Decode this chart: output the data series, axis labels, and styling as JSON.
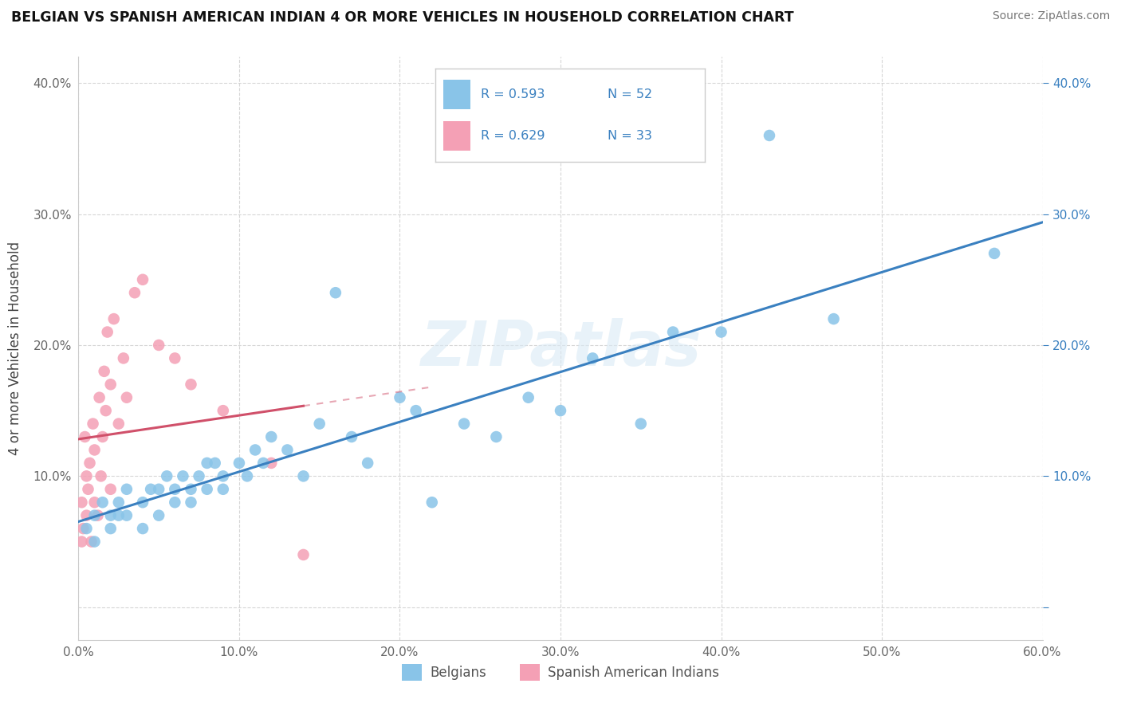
{
  "title": "BELGIAN VS SPANISH AMERICAN INDIAN 4 OR MORE VEHICLES IN HOUSEHOLD CORRELATION CHART",
  "source": "Source: ZipAtlas.com",
  "ylabel": "4 or more Vehicles in Household",
  "watermark": "ZIPatlas",
  "belgian_R": 0.593,
  "belgian_N": 52,
  "spanish_R": 0.629,
  "spanish_N": 33,
  "xlim": [
    0.0,
    0.6
  ],
  "ylim": [
    -0.025,
    0.42
  ],
  "xticks": [
    0.0,
    0.1,
    0.2,
    0.3,
    0.4,
    0.5,
    0.6
  ],
  "yticks": [
    0.0,
    0.1,
    0.2,
    0.3,
    0.4
  ],
  "xtick_labels": [
    "0.0%",
    "10.0%",
    "20.0%",
    "30.0%",
    "40.0%",
    "50.0%",
    "60.0%"
  ],
  "ytick_labels": [
    "",
    "10.0%",
    "20.0%",
    "30.0%",
    "40.0%"
  ],
  "right_ytick_labels": [
    "",
    "10.0%",
    "20.0%",
    "30.0%",
    "40.0%"
  ],
  "belgian_color": "#89C4E8",
  "spanish_color": "#F4A0B5",
  "belgian_line_color": "#3A80C0",
  "spanish_line_color": "#D0506A",
  "background_color": "#ffffff",
  "grid_color": "#cccccc",
  "belgians_label": "Belgians",
  "spanish_label": "Spanish American Indians",
  "belgian_x": [
    0.005,
    0.01,
    0.01,
    0.015,
    0.02,
    0.02,
    0.025,
    0.025,
    0.03,
    0.03,
    0.04,
    0.04,
    0.045,
    0.05,
    0.05,
    0.055,
    0.06,
    0.06,
    0.065,
    0.07,
    0.07,
    0.075,
    0.08,
    0.08,
    0.085,
    0.09,
    0.09,
    0.1,
    0.105,
    0.11,
    0.115,
    0.12,
    0.13,
    0.14,
    0.15,
    0.16,
    0.17,
    0.18,
    0.2,
    0.21,
    0.22,
    0.24,
    0.26,
    0.28,
    0.3,
    0.32,
    0.35,
    0.37,
    0.4,
    0.43,
    0.47,
    0.57
  ],
  "belgian_y": [
    0.06,
    0.07,
    0.05,
    0.08,
    0.07,
    0.06,
    0.08,
    0.07,
    0.09,
    0.07,
    0.08,
    0.06,
    0.09,
    0.09,
    0.07,
    0.1,
    0.09,
    0.08,
    0.1,
    0.09,
    0.08,
    0.1,
    0.11,
    0.09,
    0.11,
    0.1,
    0.09,
    0.11,
    0.1,
    0.12,
    0.11,
    0.13,
    0.12,
    0.1,
    0.14,
    0.24,
    0.13,
    0.11,
    0.16,
    0.15,
    0.08,
    0.14,
    0.13,
    0.16,
    0.15,
    0.19,
    0.14,
    0.21,
    0.21,
    0.36,
    0.22,
    0.27
  ],
  "spanish_x": [
    0.002,
    0.002,
    0.003,
    0.004,
    0.005,
    0.005,
    0.006,
    0.007,
    0.008,
    0.009,
    0.01,
    0.01,
    0.012,
    0.013,
    0.014,
    0.015,
    0.016,
    0.017,
    0.018,
    0.02,
    0.02,
    0.022,
    0.025,
    0.028,
    0.03,
    0.035,
    0.04,
    0.05,
    0.06,
    0.07,
    0.09,
    0.12,
    0.14
  ],
  "spanish_y": [
    0.05,
    0.08,
    0.06,
    0.13,
    0.07,
    0.1,
    0.09,
    0.11,
    0.05,
    0.14,
    0.08,
    0.12,
    0.07,
    0.16,
    0.1,
    0.13,
    0.18,
    0.15,
    0.21,
    0.09,
    0.17,
    0.22,
    0.14,
    0.19,
    0.16,
    0.24,
    0.25,
    0.2,
    0.19,
    0.17,
    0.15,
    0.11,
    0.04
  ]
}
